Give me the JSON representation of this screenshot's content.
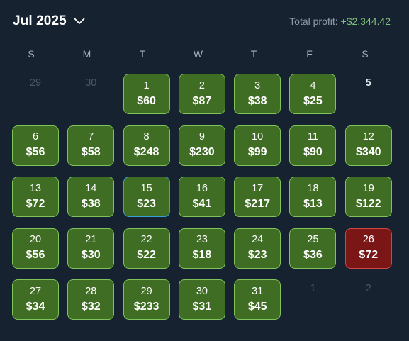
{
  "header": {
    "month_label": "Jul 2025",
    "profit_label": "Total profit:",
    "profit_value": "+$2,344.42"
  },
  "weekdays": [
    "S",
    "M",
    "T",
    "W",
    "T",
    "F",
    "S"
  ],
  "days": [
    {
      "day": "29",
      "amount": "",
      "state": "other"
    },
    {
      "day": "30",
      "amount": "",
      "state": "other"
    },
    {
      "day": "1",
      "amount": "$60",
      "state": "win"
    },
    {
      "day": "2",
      "amount": "$87",
      "state": "win"
    },
    {
      "day": "3",
      "amount": "$38",
      "state": "win"
    },
    {
      "day": "4",
      "amount": "$25",
      "state": "win"
    },
    {
      "day": "5",
      "amount": "",
      "state": "plain"
    },
    {
      "day": "6",
      "amount": "$56",
      "state": "win"
    },
    {
      "day": "7",
      "amount": "$58",
      "state": "win"
    },
    {
      "day": "8",
      "amount": "$248",
      "state": "win"
    },
    {
      "day": "9",
      "amount": "$230",
      "state": "win"
    },
    {
      "day": "10",
      "amount": "$99",
      "state": "win"
    },
    {
      "day": "11",
      "amount": "$90",
      "state": "win"
    },
    {
      "day": "12",
      "amount": "$340",
      "state": "win"
    },
    {
      "day": "13",
      "amount": "$72",
      "state": "win"
    },
    {
      "day": "14",
      "amount": "$38",
      "state": "win"
    },
    {
      "day": "15",
      "amount": "$23",
      "state": "win today"
    },
    {
      "day": "16",
      "amount": "$41",
      "state": "win"
    },
    {
      "day": "17",
      "amount": "$217",
      "state": "win"
    },
    {
      "day": "18",
      "amount": "$13",
      "state": "win"
    },
    {
      "day": "19",
      "amount": "$122",
      "state": "win"
    },
    {
      "day": "20",
      "amount": "$56",
      "state": "win"
    },
    {
      "day": "21",
      "amount": "$30",
      "state": "win"
    },
    {
      "day": "22",
      "amount": "$22",
      "state": "win"
    },
    {
      "day": "23",
      "amount": "$18",
      "state": "win"
    },
    {
      "day": "24",
      "amount": "$23",
      "state": "win"
    },
    {
      "day": "25",
      "amount": "$36",
      "state": "win"
    },
    {
      "day": "26",
      "amount": "$72",
      "state": "loss"
    },
    {
      "day": "27",
      "amount": "$34",
      "state": "win"
    },
    {
      "day": "28",
      "amount": "$32",
      "state": "win"
    },
    {
      "day": "29",
      "amount": "$233",
      "state": "win"
    },
    {
      "day": "30",
      "amount": "$31",
      "state": "win"
    },
    {
      "day": "31",
      "amount": "$45",
      "state": "win"
    },
    {
      "day": "1",
      "amount": "",
      "state": "other"
    },
    {
      "day": "2",
      "amount": "",
      "state": "other"
    }
  ],
  "colors": {
    "background": "#16222f",
    "profit_day": "#3f6d23",
    "loss_day": "#7a1616",
    "today_outline": "#3aa0d8",
    "profit_text": "#7ec37a"
  },
  "icons": {
    "month_dropdown": "chevron-down-icon"
  }
}
